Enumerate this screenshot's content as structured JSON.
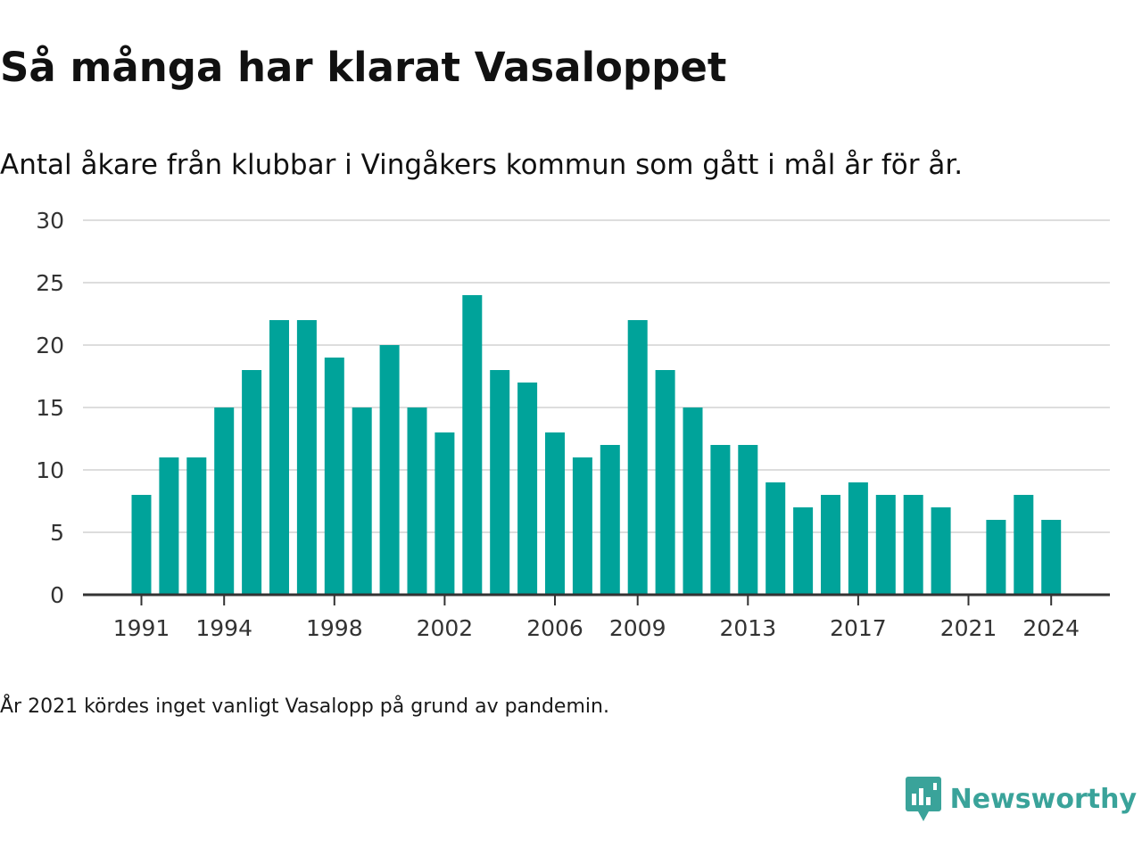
{
  "title": "Så många har klarat Vasaloppet",
  "subtitle": "Antal åkare från klubbar i Vingåkers kommun som gått i mål år för år.",
  "footnote": "År 2021 kördes inget vanligt Vasalopp på grund av pandemin.",
  "brand": {
    "name": "Newsworthy",
    "icon": "newsworthy-logo-icon",
    "color": "#3aa39a"
  },
  "colors": {
    "bar": "#00a39a",
    "grid": "#dddddd",
    "axis": "#333333"
  },
  "chart_data": {
    "type": "bar",
    "title": "Så många har klarat Vasaloppet",
    "subtitle": "Antal åkare från klubbar i Vingåkers kommun som gått i mål år för år.",
    "xlabel": "",
    "ylabel": "",
    "ylim": [
      0,
      30
    ],
    "yticks": [
      0,
      5,
      10,
      15,
      20,
      25,
      30
    ],
    "xtick_labels": [
      "1991",
      "1994",
      "1998",
      "2002",
      "2006",
      "2009",
      "2013",
      "2017",
      "2021",
      "2024"
    ],
    "grid": true,
    "categories": [
      1991,
      1992,
      1993,
      1994,
      1995,
      1996,
      1997,
      1998,
      1999,
      2000,
      2001,
      2002,
      2003,
      2004,
      2005,
      2006,
      2007,
      2008,
      2009,
      2010,
      2011,
      2012,
      2013,
      2014,
      2015,
      2016,
      2017,
      2018,
      2019,
      2020,
      2021,
      2022,
      2023,
      2024
    ],
    "values": [
      8,
      11,
      11,
      15,
      18,
      22,
      22,
      19,
      15,
      20,
      15,
      13,
      24,
      18,
      17,
      13,
      11,
      12,
      22,
      18,
      15,
      12,
      12,
      9,
      7,
      8,
      9,
      8,
      8,
      7,
      null,
      6,
      8,
      6
    ]
  }
}
